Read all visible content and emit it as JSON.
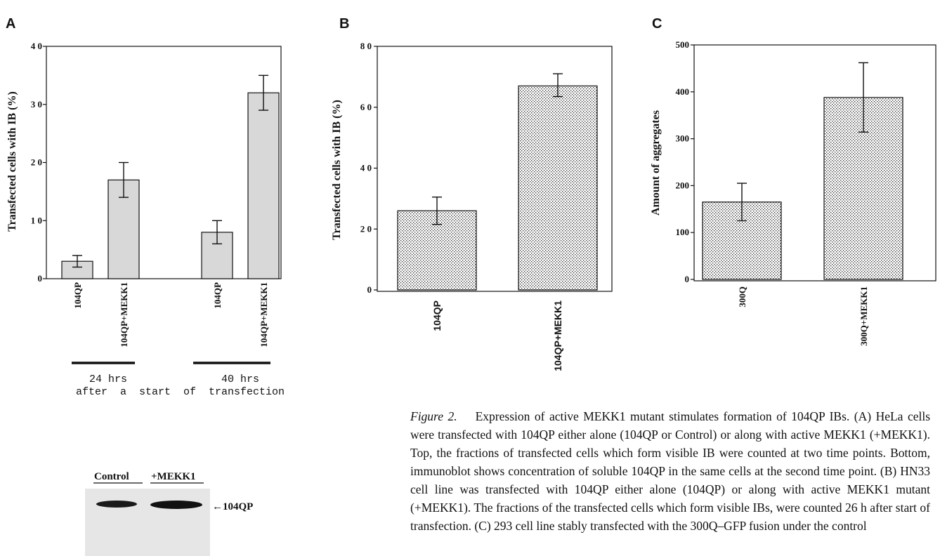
{
  "panels": {
    "a": {
      "letter": "A",
      "time_labels": [
        "24 hrs",
        "40 hrs"
      ],
      "time_subtitle": "after  a  start  of  transfection",
      "blot": {
        "lane_labels": [
          "Control",
          "+MEKK1"
        ],
        "band_label": "←104QP"
      }
    },
    "b": {
      "letter": "B"
    },
    "c": {
      "letter": "C"
    }
  },
  "chart_data": [
    {
      "panel": "A",
      "type": "bar",
      "categories": [
        "104QP",
        "104QP+MEKK1",
        "104QP",
        "104QP+MEKK1"
      ],
      "groups": [
        "24 hrs",
        "40 hrs"
      ],
      "values": [
        3,
        17,
        8,
        32
      ],
      "error_upper": [
        4,
        20,
        10,
        35
      ],
      "error_lower": [
        2,
        14,
        6,
        29
      ],
      "ylabel": "Transfected cells with IB (%)",
      "ylim": [
        0,
        40
      ],
      "yticks": [
        "0",
        "1 0",
        "2 0",
        "3 0",
        "4 0"
      ],
      "bar_color": "#d8d8d8"
    },
    {
      "panel": "B",
      "type": "bar",
      "categories": [
        "104QP",
        "104QP+MEKK1"
      ],
      "values": [
        26,
        67
      ],
      "error_upper": [
        30.5,
        71
      ],
      "error_lower": [
        21.5,
        63.5
      ],
      "ylabel": "Transfected cells with IB (%)",
      "ylim": [
        0,
        80
      ],
      "yticks": [
        "0",
        "2 0",
        "4 0",
        "6 0",
        "8 0"
      ],
      "bar_fill": "stippled"
    },
    {
      "panel": "C",
      "type": "bar",
      "categories": [
        "300Q",
        "300Q+MEKK1"
      ],
      "values": [
        165,
        388
      ],
      "error_upper": [
        205,
        462
      ],
      "error_lower": [
        125,
        314
      ],
      "ylabel": "Amount of aggregates",
      "ylim": [
        0,
        500
      ],
      "yticks": [
        "0",
        "100",
        "200",
        "300",
        "400",
        "500"
      ],
      "bar_fill": "stippled"
    }
  ],
  "caption": {
    "fig_ref": "Figure 2.",
    "text": "Expression of active MEKK1 mutant stimulates formation of 104QP IBs. (A) HeLa cells were transfected with 104QP either alone (104QP or Control) or along with active MEKK1 (+MEKK1). Top, the fractions of transfected cells which form visible IB were counted at two time points. Bottom, immunoblot shows concentration of soluble 104QP in the same cells at the second time point. (B) HN33 cell line was transfected with 104QP either alone (104QP) or along with active MEKK1 mutant (+MEKK1). The fractions of the transfected cells which form visible IBs, were counted 26 h after start of transfection. (C) 293 cell line stably transfected with the 300Q–GFP fusion under the control"
  }
}
